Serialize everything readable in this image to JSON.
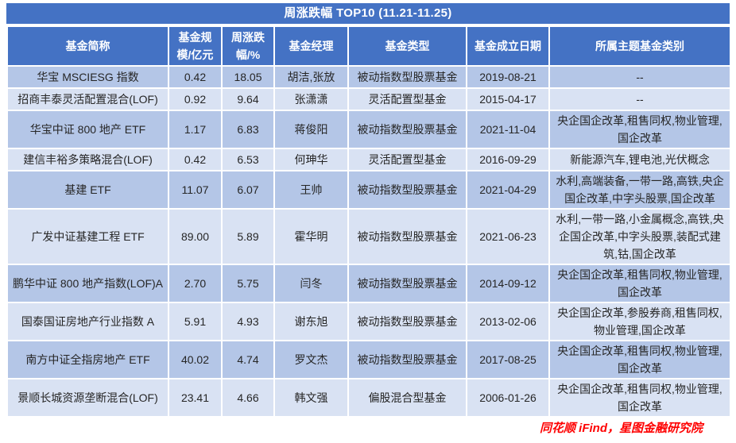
{
  "title": "周涨跌幅 TOP10 (11.21-11.25)",
  "columns": [
    "基金简称",
    "基金规模/亿元",
    "周涨跌幅/%",
    "基金经理",
    "基金类型",
    "基金成立日期",
    "所属主题基金类别"
  ],
  "footer": "同花顺 iFind，星图金融研究院",
  "colors": {
    "header_blue": "#4472C4",
    "band_dark": "#B4C6E7",
    "band_light": "#D9E2F3",
    "footer_red": "#FE0000",
    "text": "#262626"
  },
  "chart_data": {
    "type": "table",
    "title": "周涨跌幅 TOP10 (11.21-11.25)",
    "source": "同花顺 iFind，星图金融研究院",
    "columns": [
      "基金简称",
      "基金规模/亿元",
      "周涨跌幅/%",
      "基金经理",
      "基金类型",
      "基金成立日期",
      "所属主题基金类别"
    ],
    "rows": [
      {
        "name": "华宝 MSCIESG 指数",
        "scale": "0.42",
        "change": "18.05",
        "manager": "胡洁,张放",
        "type": "被动指数型股票基金",
        "inception": "2019-08-21",
        "themes": "--"
      },
      {
        "name": "招商丰泰灵活配置混合(LOF)",
        "scale": "0.92",
        "change": "9.64",
        "manager": "张潇潇",
        "type": "灵活配置型基金",
        "inception": "2015-04-17",
        "themes": "--"
      },
      {
        "name": "华宝中证 800 地产 ETF",
        "scale": "1.17",
        "change": "6.83",
        "manager": "蒋俊阳",
        "type": "被动指数型股票基金",
        "inception": "2021-11-04",
        "themes": "央企国企改革,租售同权,物业管理,国企改革"
      },
      {
        "name": "建信丰裕多策略混合(LOF)",
        "scale": "0.42",
        "change": "6.53",
        "manager": "何珅华",
        "type": "灵活配置型基金",
        "inception": "2016-09-29",
        "themes": "新能源汽车,锂电池,光伏概念"
      },
      {
        "name": "基建 ETF",
        "scale": "11.07",
        "change": "6.07",
        "manager": "王帅",
        "type": "被动指数型股票基金",
        "inception": "2021-04-29",
        "themes": "水利,高端装备,一带一路,高铁,央企国企改革,中字头股票,国企改革"
      },
      {
        "name": "广发中证基建工程 ETF",
        "scale": "89.00",
        "change": "5.89",
        "manager": "霍华明",
        "type": "被动指数型股票基金",
        "inception": "2021-06-23",
        "themes": "水利,一带一路,小金属概念,高铁,央企国企改革,中字头股票,装配式建筑,钴,国企改革"
      },
      {
        "name": "鹏华中证 800 地产指数(LOF)A",
        "scale": "2.70",
        "change": "5.75",
        "manager": "闫冬",
        "type": "被动指数型股票基金",
        "inception": "2014-09-12",
        "themes": "央企国企改革,租售同权,物业管理,国企改革"
      },
      {
        "name": "国泰国证房地产行业指数 A",
        "scale": "5.91",
        "change": "4.93",
        "manager": "谢东旭",
        "type": "被动指数型股票基金",
        "inception": "2013-02-06",
        "themes": "央企国企改革,参股券商,租售同权,物业管理,国企改革"
      },
      {
        "name": "南方中证全指房地产 ETF",
        "scale": "40.02",
        "change": "4.74",
        "manager": "罗文杰",
        "type": "被动指数型股票基金",
        "inception": "2017-08-25",
        "themes": "央企国企改革,租售同权,物业管理,国企改革"
      },
      {
        "name": "景顺长城资源垄断混合(LOF)",
        "scale": "23.41",
        "change": "4.66",
        "manager": "韩文强",
        "type": "偏股混合型基金",
        "inception": "2006-01-26",
        "themes": "央企国企改革,租售同权,物业管理,国企改革"
      }
    ]
  }
}
